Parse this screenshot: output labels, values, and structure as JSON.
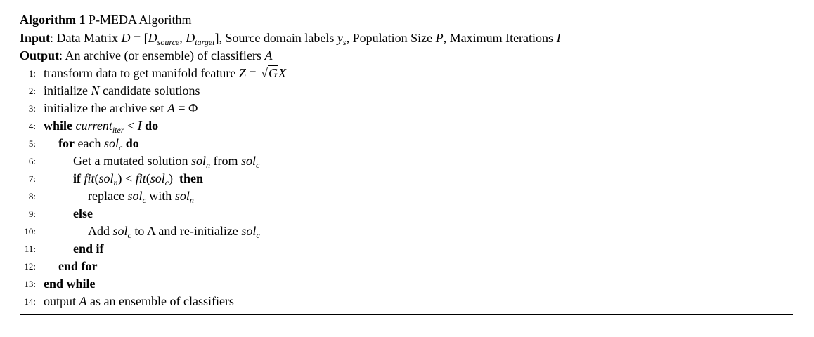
{
  "algorithm": {
    "label": "Algorithm 1",
    "title": "P-MEDA Algorithm",
    "input_label": "Input",
    "input_text_1": ": Data Matrix ",
    "input_text_2": ", Source domain labels ",
    "input_text_3": ", Population Size ",
    "input_text_4": ", Maximum Iterations ",
    "output_label": "Output",
    "output_text": ": An archive (or ensemble) of classifiers ",
    "lines": [
      {
        "num": "1:",
        "text": "transform data to get manifold feature "
      },
      {
        "num": "2:",
        "text_a": "initialize ",
        "text_b": " candidate solutions"
      },
      {
        "num": "3:",
        "text": "initialize the archive set "
      },
      {
        "num": "4:",
        "kw_a": "while",
        "kw_b": "do"
      },
      {
        "num": "5:",
        "kw_a": "for",
        "text": " each ",
        "kw_b": "do"
      },
      {
        "num": "6:",
        "text_a": "Get a mutated solution ",
        "text_b": " from "
      },
      {
        "num": "7:",
        "kw_a": "if",
        "kw_b": "then"
      },
      {
        "num": "8:",
        "text_a": "replace ",
        "text_b": " with "
      },
      {
        "num": "9:",
        "kw": "else"
      },
      {
        "num": "10:",
        "text_a": "Add ",
        "text_b": " to A and re-initialize "
      },
      {
        "num": "11:",
        "kw": "end if"
      },
      {
        "num": "12:",
        "kw": "end for"
      },
      {
        "num": "13:",
        "kw": "end while"
      },
      {
        "num": "14:",
        "text_a": "output ",
        "text_b": " as an ensemble of classifiers"
      }
    ]
  }
}
